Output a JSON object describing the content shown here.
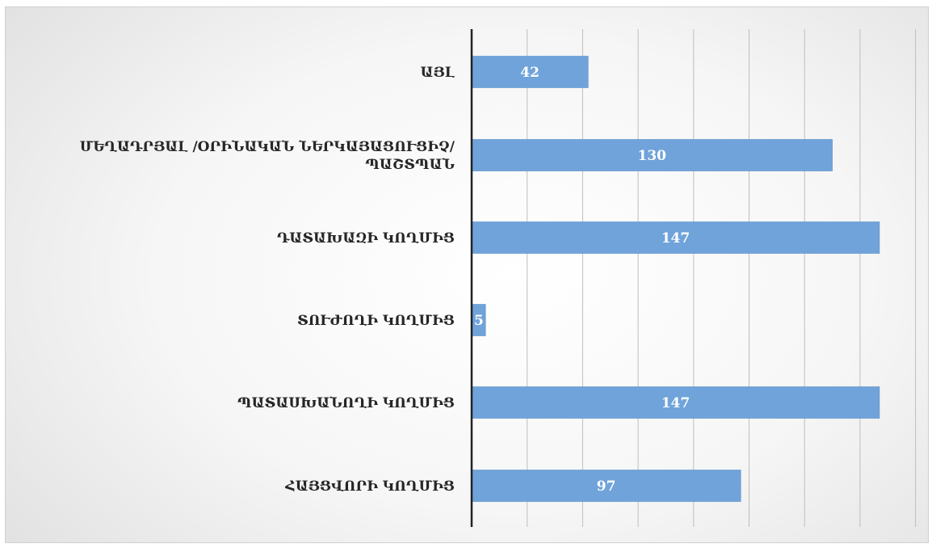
{
  "chart_data": {
    "type": "bar",
    "orientation": "horizontal",
    "categories": [
      "ԱՅԼ",
      "ՄԵՂԱԴՐՅԱԼ /ՕՐԻՆԱԿԱՆ ՆԵՐԿԱՅԱՑՈՒՑԻՉ/ ՊԱՇՏՊԱՆ",
      "ԴԱՏԱԽԱԶԻ ԿՈՂՄԻՑ",
      "ՏՈՒԺՈՂԻ ԿՈՂՄԻՑ",
      "ՊԱՏԱՍԽԱՆՈՂԻ ԿՈՂՄԻՑ",
      "ՀԱՅՑՎՈՐԻ ԿՈՂՄԻՑ"
    ],
    "label_lines": [
      [
        "ԱՅԼ"
      ],
      [
        "ՄԵՂԱԴՐՅԱԼ /ՕՐԻՆԱԿԱՆ ՆԵՐԿԱՅԱՑՈՒՑԻՉ/",
        "ՊԱՇՏՊԱՆ"
      ],
      [
        "ԴԱՏԱԽԱԶԻ ԿՈՂՄԻՑ"
      ],
      [
        "ՏՈՒԺՈՂԻ ԿՈՂՄԻՑ"
      ],
      [
        "ՊԱՏԱՍԽԱՆՈՂԻ ԿՈՂՄԻՑ"
      ],
      [
        "ՀԱՅՑՎՈՐԻ ԿՈՂՄԻՑ"
      ]
    ],
    "values": [
      42,
      130,
      147,
      5,
      147,
      97
    ],
    "xlim": [
      0,
      160
    ],
    "grid_step": 20,
    "grid": true,
    "data_labels": true,
    "axis_tick_labels": false,
    "legend": "none",
    "colors": {
      "bar": "#6FA3DA",
      "bar_edge": "#5B8FC9",
      "grid": "#BEBEBE",
      "axis": "#222222",
      "label": "#262626",
      "value_label": "#FFFFFF"
    }
  }
}
